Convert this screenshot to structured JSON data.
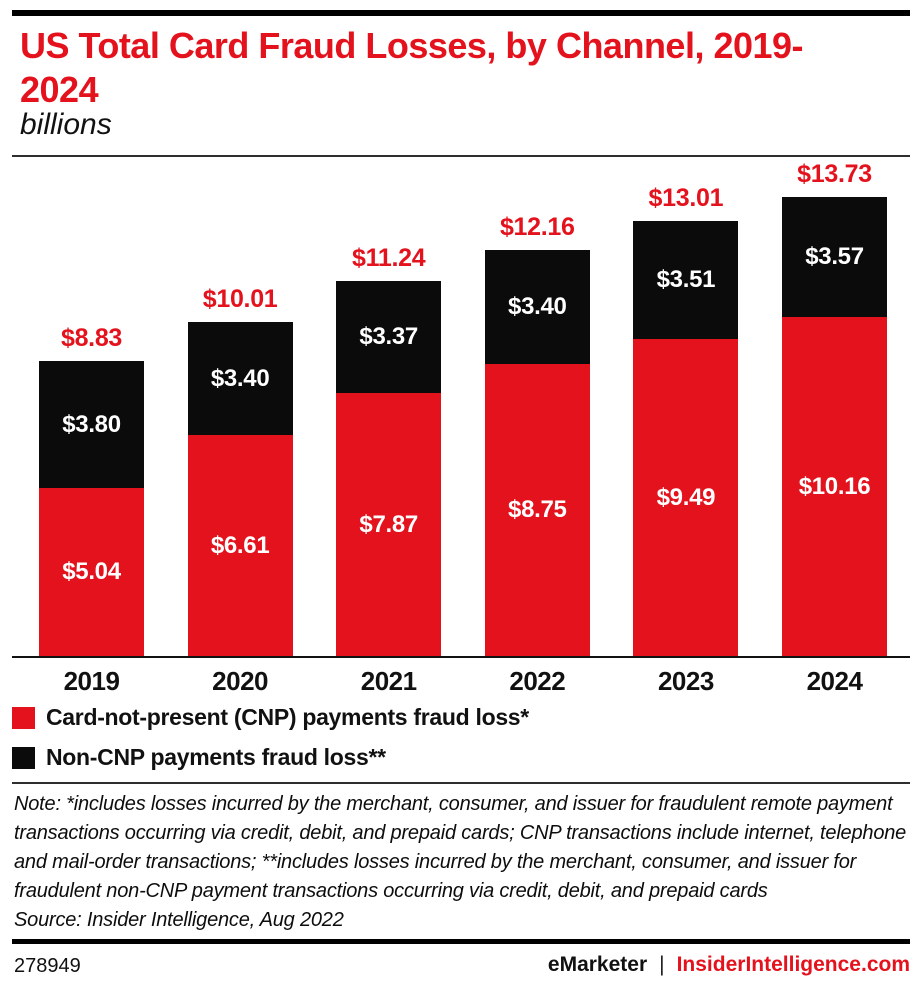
{
  "header": {
    "title": "US Total Card Fraud Losses, by Channel, 2019-2024",
    "subtitle": "billions"
  },
  "chart_data": {
    "type": "bar",
    "stacked": true,
    "title": "US Total Card Fraud Losses, by Channel, 2019-2024",
    "unit_label": "billions",
    "xlabel": "",
    "ylabel": "",
    "ylim": [
      0,
      14.9
    ],
    "grid": false,
    "legend_position": "bottom-left",
    "categories": [
      "2019",
      "2020",
      "2021",
      "2022",
      "2023",
      "2024"
    ],
    "series": [
      {
        "name": "Card-not-present (CNP) payments fraud loss*",
        "color": "#e4121d",
        "values": [
          5.04,
          6.61,
          7.87,
          8.75,
          9.49,
          10.16
        ]
      },
      {
        "name": "Non-CNP payments fraud loss**",
        "color": "#0b0b0b",
        "values": [
          3.8,
          3.4,
          3.37,
          3.4,
          3.51,
          3.57
        ]
      }
    ],
    "totals": [
      8.83,
      10.01,
      11.24,
      12.16,
      13.01,
      13.73
    ],
    "labels": {
      "cnp": [
        "$5.04",
        "$6.61",
        "$7.87",
        "$8.75",
        "$9.49",
        "$10.16"
      ],
      "non_cnp": [
        "$3.80",
        "$3.40",
        "$3.37",
        "$3.40",
        "$3.51",
        "$3.57"
      ],
      "totals": [
        "$8.83",
        "$10.01",
        "$11.24",
        "$12.16",
        "$13.01",
        "$13.73"
      ]
    }
  },
  "note": {
    "text": "Note: *includes losses incurred by the merchant, consumer, and issuer for fraudulent remote payment transactions occurring via credit, debit, and prepaid cards; CNP transactions include internet, telephone and mail-order transactions; **includes losses incurred by the merchant, consumer, and issuer for fraudulent non-CNP payment transactions occurring via credit, debit, and prepaid cards",
    "source": "Source: Insider Intelligence, Aug 2022"
  },
  "footer": {
    "chart_id": "278949",
    "brand": "eMarketer",
    "separator": "|",
    "site": "InsiderIntelligence.com"
  },
  "colors": {
    "accent_red": "#e4121d",
    "bar_black": "#0b0b0b",
    "rule": "#2e2e2e"
  }
}
